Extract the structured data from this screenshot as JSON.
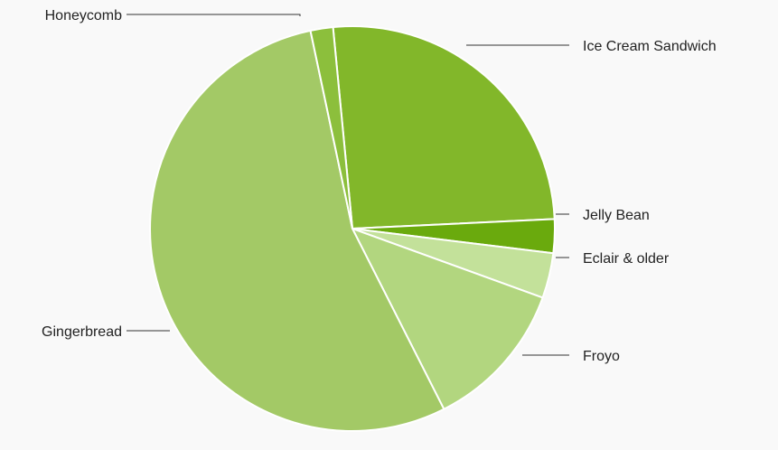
{
  "chart_data": {
    "type": "pie",
    "title": "",
    "start_angle_deg": -5.5,
    "direction": "clockwise",
    "slice_border_color": "#ffffff",
    "leader_line_color": "#333333",
    "slices": [
      {
        "label": "Ice Cream Sandwich",
        "value": 25.8,
        "color": "#82b72a"
      },
      {
        "label": "Jelly Bean",
        "value": 2.7,
        "color": "#6aaa0d"
      },
      {
        "label": "Eclair & older",
        "value": 3.6,
        "color": "#c3e19a"
      },
      {
        "label": "Froyo",
        "value": 12.0,
        "color": "#b2d67f"
      },
      {
        "label": "Gingerbread",
        "value": 54.2,
        "color": "#a3c966"
      },
      {
        "label": "Honeycomb",
        "value": 1.8,
        "color": "#8cbf3c"
      }
    ]
  }
}
